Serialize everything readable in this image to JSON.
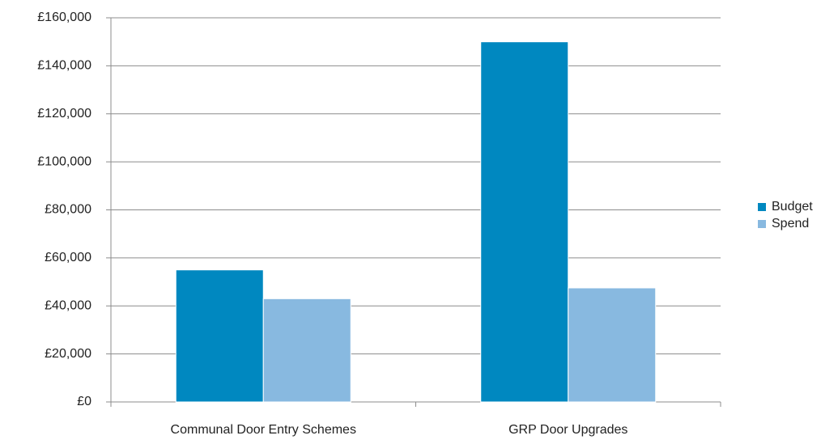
{
  "chart_data": {
    "type": "bar",
    "categories": [
      "Communal Door Entry Schemes",
      "GRP Door Upgrades"
    ],
    "series": [
      {
        "name": "Budget",
        "color": "#0088c0",
        "values": [
          55000,
          150000
        ]
      },
      {
        "name": "Spend",
        "color": "#88b9e0",
        "values": [
          43000,
          47500
        ]
      }
    ],
    "ylim": [
      0,
      160000
    ],
    "yticks": [
      {
        "value": 0,
        "label": "£0"
      },
      {
        "value": 20000,
        "label": "£20,000"
      },
      {
        "value": 40000,
        "label": "£40,000"
      },
      {
        "value": 60000,
        "label": "£60,000"
      },
      {
        "value": 80000,
        "label": "£80,000"
      },
      {
        "value": 100000,
        "label": "£100,000"
      },
      {
        "value": 120000,
        "label": "£120,000"
      },
      {
        "value": 140000,
        "label": "£140,000"
      },
      {
        "value": 160000,
        "label": "£160,000"
      }
    ],
    "grid": true,
    "legend": "right"
  }
}
